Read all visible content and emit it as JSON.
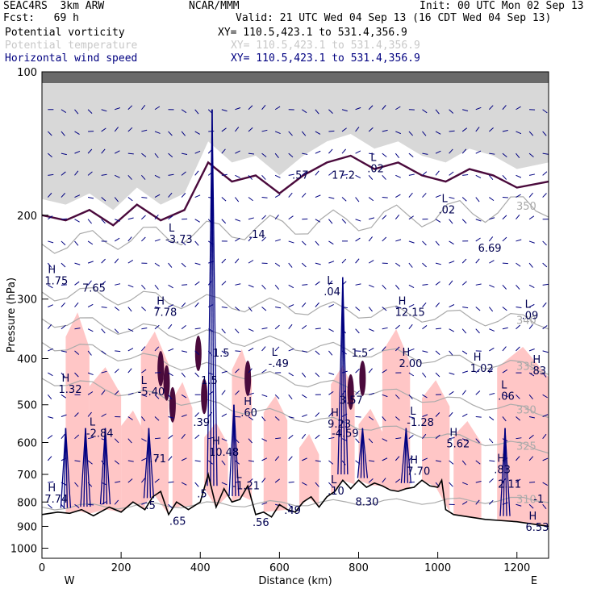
{
  "header": {
    "model": "SEAC4RS  3km ARW",
    "org": "NCAR/MMM",
    "init": "Init: 00 UTC Mon 02 Sep 13",
    "fcst": "Fcst:   69 h",
    "valid": "Valid: 21 UTC Wed 04 Sep 13 (16 CDT Wed 04 Sep 13)"
  },
  "legend": [
    {
      "name": "Potential vorticity",
      "xy": "XY= 110.5,423.1 to 531.4,356.9",
      "color": "#000000"
    },
    {
      "name": "Potential temperature",
      "xy": "XY= 110.5,423.1 to 531.4,356.9",
      "color": "#c8c8c8"
    },
    {
      "name": "Horizontal wind speed",
      "xy": "XY= 110.5,423.1 to 531.4,356.9",
      "color": "#000080"
    }
  ],
  "colors": {
    "pv": "#4a0a3c",
    "theta": "#aaaaaa",
    "wind": "#000080",
    "cloud": "#ffc0c0",
    "terrain": "#000000"
  },
  "chart_data": {
    "type": "cross-section",
    "xlabel": "Distance (km)",
    "ylabel": "Pressure (hPa)",
    "xlim": [
      0,
      1280
    ],
    "ylim": [
      100,
      1050
    ],
    "y_log": true,
    "x_ticks": [
      "0",
      "200",
      "400",
      "600",
      "800",
      "1000",
      "1200"
    ],
    "y_ticks": [
      "100",
      "200",
      "300",
      "400",
      "500",
      "600",
      "700",
      "800",
      "900",
      "1000"
    ],
    "end_labels": {
      "left": "W",
      "right": "E"
    },
    "terrain_surface": {
      "distance": [
        0,
        40,
        70,
        100,
        130,
        170,
        200,
        230,
        260,
        280,
        300,
        320,
        340,
        370,
        400,
        420,
        440,
        460,
        480,
        500,
        520,
        540,
        560,
        580,
        600,
        620,
        640,
        660,
        680,
        700,
        720,
        740,
        760,
        780,
        800,
        820,
        840,
        860,
        880,
        900,
        920,
        940,
        960,
        980,
        1000,
        1010,
        1020,
        1040,
        1080,
        1120,
        1160,
        1200,
        1240,
        1280
      ],
      "pressure": [
        850,
        840,
        845,
        830,
        855,
        820,
        840,
        800,
        830,
        780,
        760,
        850,
        800,
        830,
        800,
        700,
        820,
        750,
        800,
        790,
        740,
        850,
        840,
        860,
        810,
        830,
        840,
        800,
        780,
        820,
        780,
        760,
        720,
        750,
        720,
        745,
        730,
        740,
        755,
        760,
        750,
        745,
        720,
        740,
        745,
        720,
        830,
        850,
        860,
        870,
        875,
        880,
        890,
        900
      ]
    },
    "theta_isentropes": [
      {
        "label": "310",
        "d": [
          0,
          1280
        ],
        "p": [
          820,
          790
        ]
      },
      {
        "label": "325",
        "d": [
          0,
          1280
        ],
        "p": [
          440,
          620
        ]
      },
      {
        "label": "330",
        "d": [
          0,
          1280
        ],
        "p": [
          370,
          520
        ]
      },
      {
        "label": "335",
        "d": [
          0,
          1280
        ],
        "p": [
          330,
          420
        ]
      },
      {
        "label": "340",
        "d": [
          0,
          1280
        ],
        "p": [
          290,
          335
        ]
      },
      {
        "label": "350",
        "d": [
          0,
          1280
        ],
        "p": [
          230,
          190
        ]
      }
    ],
    "tropopause_pv": {
      "distance": [
        0,
        60,
        120,
        180,
        240,
        300,
        360,
        420,
        480,
        540,
        600,
        660,
        720,
        780,
        840,
        900,
        960,
        1020,
        1080,
        1140,
        1200,
        1280
      ],
      "pressure": [
        185,
        190,
        180,
        195,
        175,
        190,
        180,
        140,
        155,
        150,
        165,
        150,
        140,
        135,
        145,
        140,
        150,
        155,
        145,
        150,
        160,
        155
      ]
    },
    "wind_maxima_km": [
      60,
      110,
      160,
      270,
      430,
      485,
      760,
      810,
      920,
      1170
    ],
    "extrema_labels": [
      {
        "type": "H",
        "value": "1.32",
        "d": 50,
        "p": 465
      },
      {
        "type": "L",
        "value": "-2.84",
        "d": 120,
        "p": 575
      },
      {
        "type": "H",
        "value": "7.74",
        "d": 15,
        "p": 790
      },
      {
        "type": "H",
        "value": "1.75",
        "d": 15,
        "p": 275
      },
      {
        "type": "",
        "value": "7.65",
        "d": 110,
        "p": 285
      },
      {
        "type": "L",
        "value": "-3.73",
        "d": 320,
        "p": 225
      },
      {
        "type": "H",
        "value": "7.78",
        "d": 290,
        "p": 320
      },
      {
        "type": "L",
        "value": "-5.40",
        "d": 250,
        "p": 470
      },
      {
        "type": "",
        "value": "1.5",
        "d": 440,
        "p": 390
      },
      {
        "type": "",
        "value": "1.5",
        "d": 410,
        "p": 445
      },
      {
        "type": "",
        "value": ".39",
        "d": 390,
        "p": 545
      },
      {
        "type": "H",
        "value": "10.48",
        "d": 430,
        "p": 630
      },
      {
        "type": "",
        "value": ".71",
        "d": 280,
        "p": 650
      },
      {
        "type": "",
        "value": ".14",
        "d": 530,
        "p": 220
      },
      {
        "type": "L",
        "value": "-.49",
        "d": 580,
        "p": 410
      },
      {
        "type": "H",
        "value": ".60",
        "d": 510,
        "p": 520
      },
      {
        "type": "L",
        "value": "-1.21",
        "d": 490,
        "p": 740
      },
      {
        "type": "",
        "value": ".57",
        "d": 640,
        "p": 165
      },
      {
        "type": "",
        "value": "17.2",
        "d": 740,
        "p": 165
      },
      {
        "type": "L",
        "value": ".02",
        "d": 830,
        "p": 160
      },
      {
        "type": "L",
        "value": ".04",
        "d": 720,
        "p": 290
      },
      {
        "type": "H",
        "value": "12.15",
        "d": 900,
        "p": 320
      },
      {
        "type": "H",
        "value": "2.00",
        "d": 910,
        "p": 410
      },
      {
        "type": "",
        "value": "1.5",
        "d": 790,
        "p": 390
      },
      {
        "type": "",
        "value": "3.57",
        "d": 760,
        "p": 490
      },
      {
        "type": "H",
        "value": "9.23",
        "d": 730,
        "p": 550
      },
      {
        "type": "",
        "value": "-4.59",
        "d": 740,
        "p": 575
      },
      {
        "type": "L",
        "value": "-1.28",
        "d": 930,
        "p": 545
      },
      {
        "type": "L",
        "value": ".02",
        "d": 1010,
        "p": 195
      },
      {
        "type": "",
        "value": "6.69",
        "d": 1110,
        "p": 235
      },
      {
        "type": "L",
        "value": ".09",
        "d": 1220,
        "p": 325
      },
      {
        "type": "H",
        "value": "1.02",
        "d": 1090,
        "p": 420
      },
      {
        "type": "L",
        "value": ".06",
        "d": 1160,
        "p": 480
      },
      {
        "type": "H",
        "value": ".83",
        "d": 1240,
        "p": 425
      },
      {
        "type": "H",
        "value": "5.62",
        "d": 1030,
        "p": 605
      },
      {
        "type": "H",
        "value": "7.70",
        "d": 930,
        "p": 690
      },
      {
        "type": "H",
        "value": ".83",
        "d": 1150,
        "p": 685
      },
      {
        "type": "",
        "value": "2.11",
        "d": 1160,
        "p": 735
      },
      {
        "type": "L",
        "value": ".10",
        "d": 730,
        "p": 760
      },
      {
        "type": "",
        "value": "8.30",
        "d": 800,
        "p": 800
      },
      {
        "type": "",
        "value": ".49",
        "d": 620,
        "p": 835
      },
      {
        "type": "",
        "value": ".56",
        "d": 540,
        "p": 885
      },
      {
        "type": "",
        "value": ".65",
        "d": 330,
        "p": 880
      },
      {
        "type": "",
        "value": ".5",
        "d": 270,
        "p": 815
      },
      {
        "type": "",
        "value": ".5",
        "d": 400,
        "p": 770
      },
      {
        "type": "H",
        "value": "6.53",
        "d": 1230,
        "p": 905
      },
      {
        "type": "",
        "value": "-1",
        "d": 1250,
        "p": 790
      }
    ]
  }
}
